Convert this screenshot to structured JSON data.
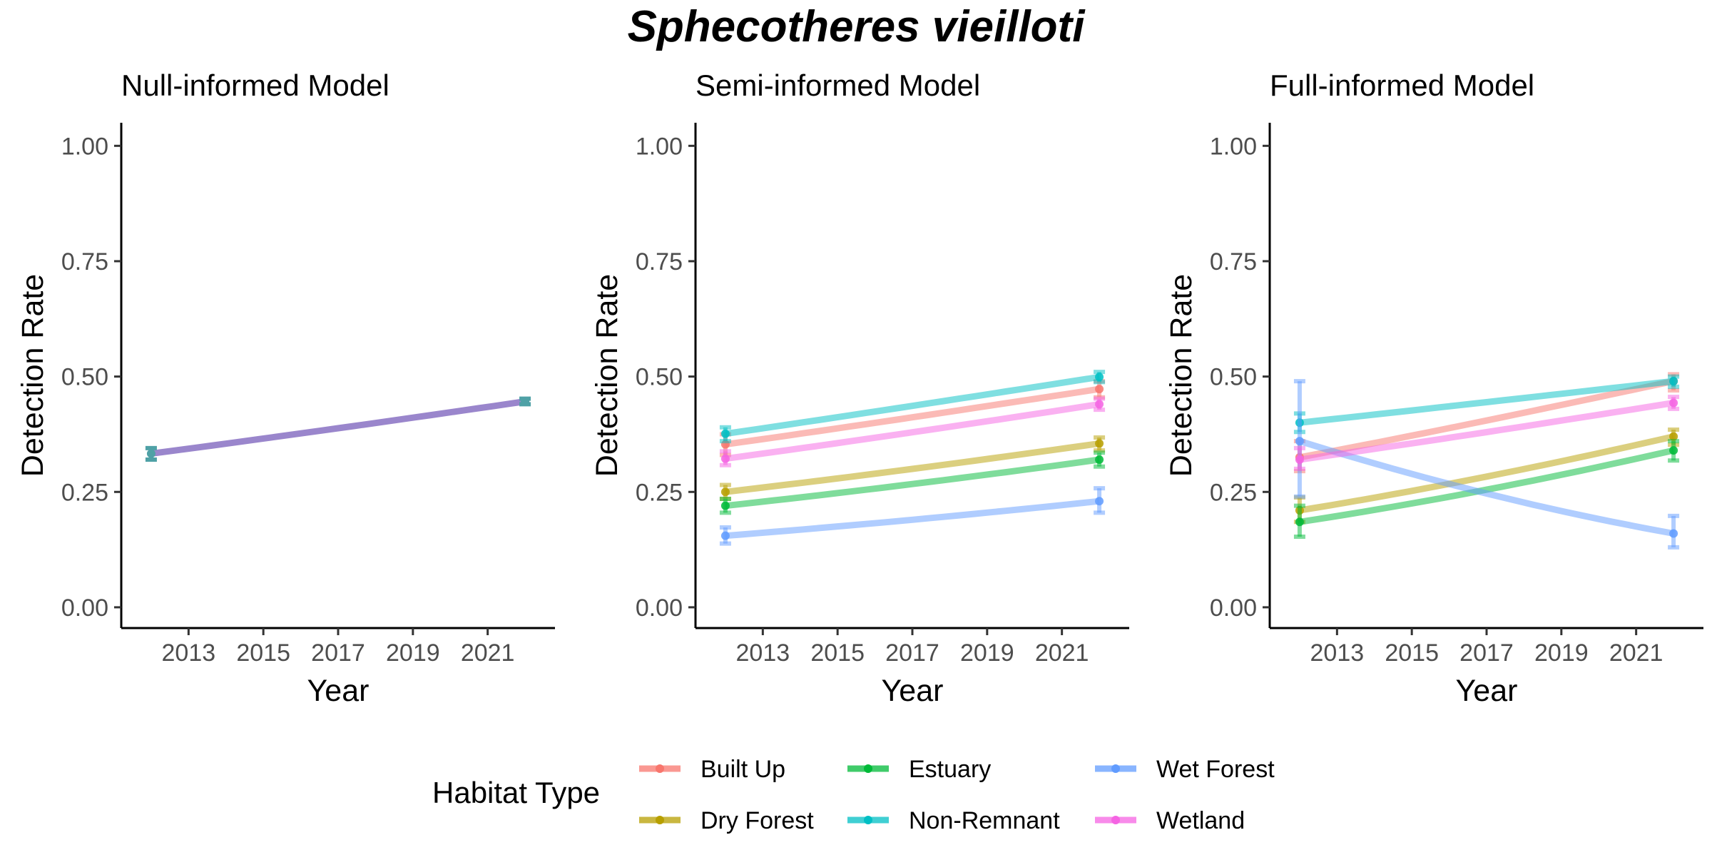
{
  "title": "Sphecotheres vieilloti",
  "colors": {
    "Built Up": "#F8766D",
    "Dry Forest": "#B79F00",
    "Estuary": "#00BA38",
    "Non-Remnant": "#00BFC4",
    "Wet Forest": "#619CFF",
    "Wetland": "#F564E3",
    "null_line": "#9A86CC",
    "null_point": "#4FA1A6"
  },
  "legend": {
    "title": "Habitat Type",
    "items": [
      "Built Up",
      "Dry Forest",
      "Estuary",
      "Non-Remnant",
      "Wet Forest",
      "Wetland"
    ]
  },
  "chart_data": [
    {
      "type": "line",
      "title": "Null-informed Model",
      "xlabel": "Year",
      "ylabel": "Detection Rate",
      "xlim": [
        2011.2,
        2022.8
      ],
      "ylim": [
        -0.045,
        1.05
      ],
      "xticks": [
        2013,
        2015,
        2017,
        2019,
        2021
      ],
      "yticks": [
        0.0,
        0.25,
        0.5,
        0.75,
        1.0
      ],
      "ytick_labels": [
        "0.00",
        "0.25",
        "0.50",
        "0.75",
        "1.00"
      ],
      "grid": false,
      "series": [
        {
          "name": "",
          "x": [
            2012,
            2022
          ],
          "y": [
            0.333,
            0.446
          ],
          "lower": [
            0.32,
            0.44
          ],
          "upper": [
            0.345,
            0.452
          ]
        }
      ]
    },
    {
      "type": "line",
      "title": "Semi-informed Model",
      "xlabel": "Year",
      "ylabel": "Detection Rate",
      "xlim": [
        2011.2,
        2022.8
      ],
      "ylim": [
        -0.045,
        1.05
      ],
      "xticks": [
        2013,
        2015,
        2017,
        2019,
        2021
      ],
      "yticks": [
        0.0,
        0.25,
        0.5,
        0.75,
        1.0
      ],
      "ytick_labels": [
        "0.00",
        "0.25",
        "0.50",
        "0.75",
        "1.00"
      ],
      "grid": false,
      "series": [
        {
          "name": "Built Up",
          "x": [
            2012,
            2022
          ],
          "y": [
            0.353,
            0.473
          ],
          "lower": [
            0.33,
            0.455
          ],
          "upper": [
            0.375,
            0.49
          ]
        },
        {
          "name": "Dry Forest",
          "x": [
            2012,
            2022
          ],
          "y": [
            0.25,
            0.355
          ],
          "lower": [
            0.235,
            0.34
          ],
          "upper": [
            0.265,
            0.368
          ]
        },
        {
          "name": "Estuary",
          "x": [
            2012,
            2022
          ],
          "y": [
            0.22,
            0.32
          ],
          "lower": [
            0.205,
            0.305
          ],
          "upper": [
            0.235,
            0.335
          ]
        },
        {
          "name": "Non-Remnant",
          "x": [
            2012,
            2022
          ],
          "y": [
            0.376,
            0.499
          ],
          "lower": [
            0.36,
            0.488
          ],
          "upper": [
            0.39,
            0.51
          ]
        },
        {
          "name": "Wet Forest",
          "x": [
            2012,
            2022
          ],
          "y": [
            0.155,
            0.23
          ],
          "lower": [
            0.138,
            0.205
          ],
          "upper": [
            0.173,
            0.258
          ]
        },
        {
          "name": "Wetland",
          "x": [
            2012,
            2022
          ],
          "y": [
            0.322,
            0.44
          ],
          "lower": [
            0.308,
            0.428
          ],
          "upper": [
            0.338,
            0.452
          ]
        }
      ]
    },
    {
      "type": "line",
      "title": "Full-informed Model",
      "xlabel": "Year",
      "ylabel": "Detection Rate",
      "xlim": [
        2011.2,
        2022.8
      ],
      "ylim": [
        -0.045,
        1.05
      ],
      "xticks": [
        2013,
        2015,
        2017,
        2019,
        2021
      ],
      "yticks": [
        0.0,
        0.25,
        0.5,
        0.75,
        1.0
      ],
      "ytick_labels": [
        "0.00",
        "0.25",
        "0.50",
        "0.75",
        "1.00"
      ],
      "grid": false,
      "series": [
        {
          "name": "Built Up",
          "x": [
            2012,
            2022
          ],
          "y": [
            0.325,
            0.49
          ],
          "lower": [
            0.295,
            0.47
          ],
          "upper": [
            0.36,
            0.505
          ]
        },
        {
          "name": "Dry Forest",
          "x": [
            2012,
            2022
          ],
          "y": [
            0.21,
            0.37
          ],
          "lower": [
            0.185,
            0.352
          ],
          "upper": [
            0.238,
            0.385
          ]
        },
        {
          "name": "Estuary",
          "x": [
            2012,
            2022
          ],
          "y": [
            0.185,
            0.34
          ],
          "lower": [
            0.153,
            0.318
          ],
          "upper": [
            0.22,
            0.36
          ]
        },
        {
          "name": "Non-Remnant",
          "x": [
            2012,
            2022
          ],
          "y": [
            0.4,
            0.49
          ],
          "lower": [
            0.38,
            0.478
          ],
          "upper": [
            0.42,
            0.5
          ]
        },
        {
          "name": "Wet Forest",
          "x": [
            2012,
            2022
          ],
          "y": [
            0.36,
            0.16
          ],
          "lower": [
            0.24,
            0.13
          ],
          "upper": [
            0.49,
            0.198
          ]
        },
        {
          "name": "Wetland",
          "x": [
            2012,
            2022
          ],
          "y": [
            0.32,
            0.443
          ],
          "lower": [
            0.3,
            0.43
          ],
          "upper": [
            0.345,
            0.456
          ]
        }
      ]
    }
  ]
}
